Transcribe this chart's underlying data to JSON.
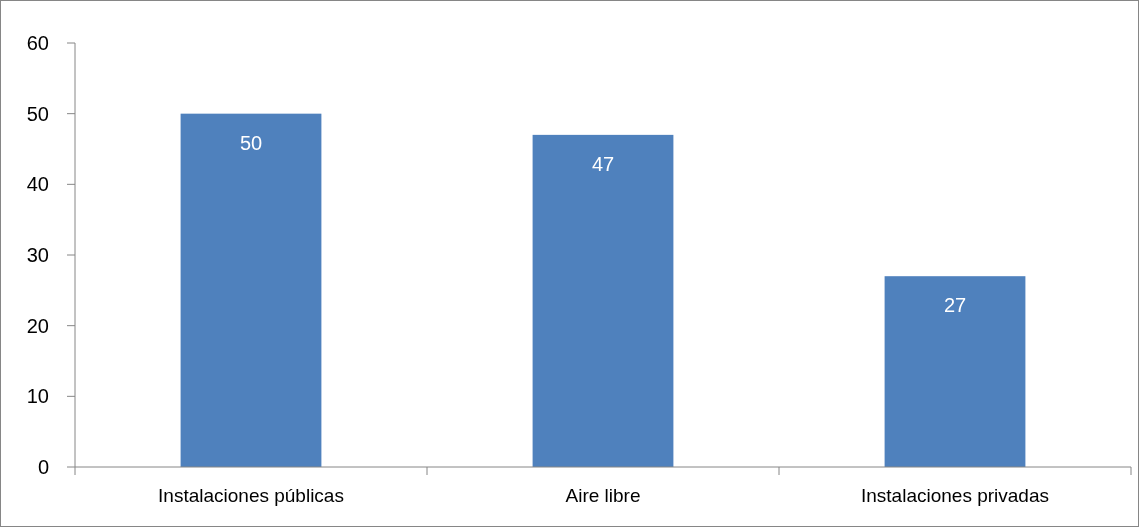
{
  "chart_data": {
    "type": "bar",
    "categories": [
      "Instalaciones públicas",
      "Aire libre",
      "Instalaciones privadas"
    ],
    "values": [
      50,
      47,
      27
    ],
    "color": "#4f81bd",
    "ylim": [
      0,
      60
    ],
    "yticks": [
      0,
      10,
      20,
      30,
      40,
      50,
      60
    ],
    "grid": false,
    "data_labels": true
  }
}
